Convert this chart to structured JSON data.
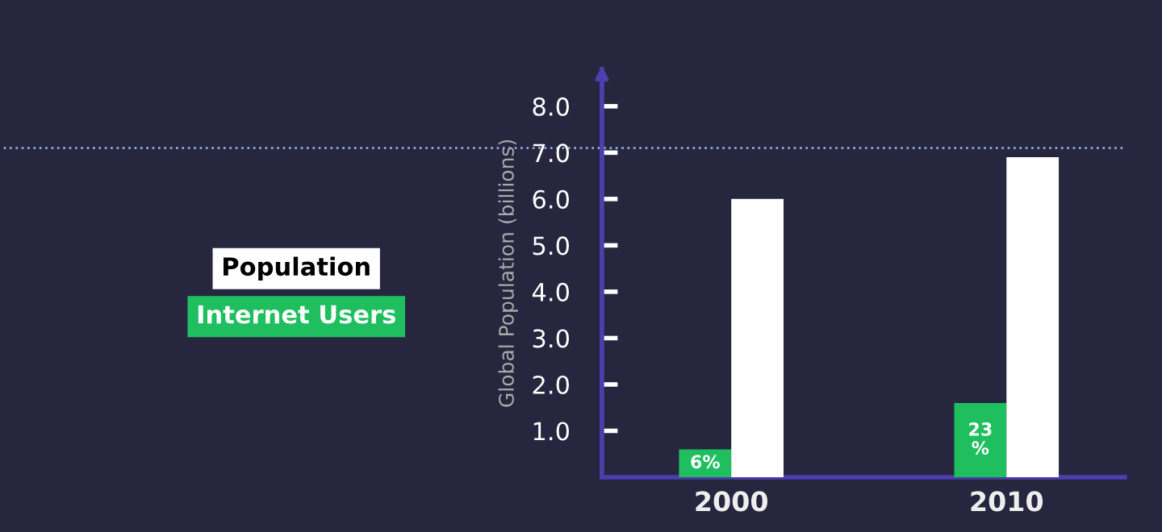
{
  "chart_data": {
    "type": "bar",
    "ylabel": "Global Population (billions)",
    "categories": [
      "2000",
      "2010"
    ],
    "series": [
      {
        "name": "Internet Users",
        "color": "#1fbf5f",
        "values": [
          0.6,
          1.6
        ]
      },
      {
        "name": "Population",
        "color": "#ffffff",
        "values": [
          6.0,
          6.9
        ]
      }
    ],
    "ylim": [
      0,
      8.8
    ],
    "yticks": [
      {
        "value": 1,
        "label": "1.0"
      },
      {
        "value": 2,
        "label": "2.0"
      },
      {
        "value": 3,
        "label": "3.0"
      },
      {
        "value": 4,
        "label": "4.0"
      },
      {
        "value": 5,
        "label": "5.0"
      },
      {
        "value": 6,
        "label": "6.0"
      },
      {
        "value": 7,
        "label": "7.0"
      },
      {
        "value": 8,
        "label": "8.0"
      }
    ],
    "ref_lines": [
      {
        "axis": "y",
        "value": 7.1,
        "color": "#8fa8d8",
        "line_style": "dotted"
      }
    ],
    "annotations": [
      {
        "text": "6%",
        "x": "2000",
        "y": 0.3
      },
      {
        "text": "23 %",
        "x": "2010",
        "y": 0.8
      }
    ],
    "grid": false,
    "legend": "left"
  }
}
